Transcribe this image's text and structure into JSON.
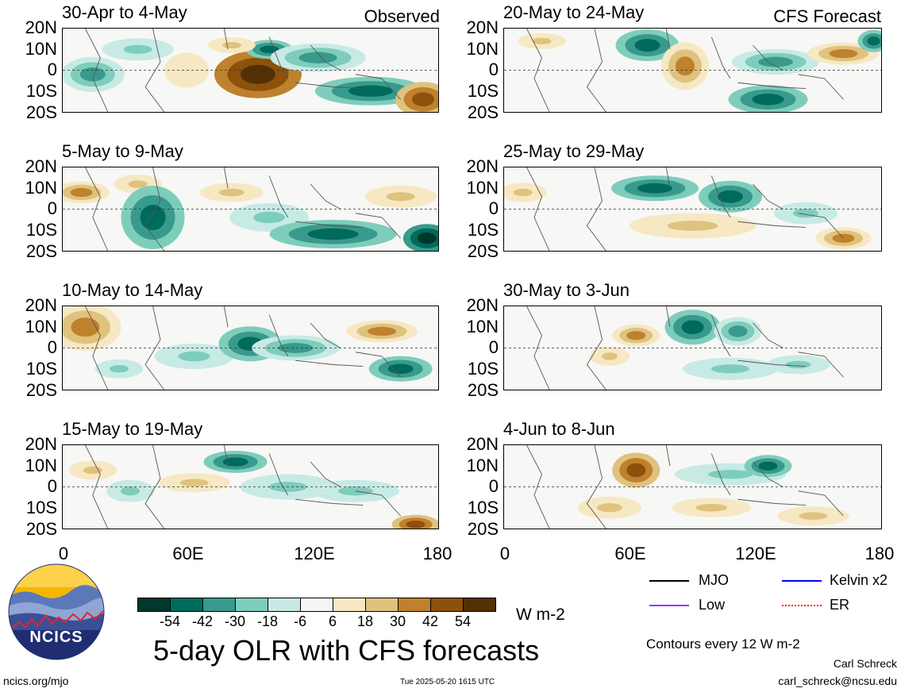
{
  "header": {
    "observed_label": "Observed",
    "forecast_label": "CFS Forecast"
  },
  "lat_labels": [
    "20N",
    "10N",
    "0",
    "10S",
    "20S"
  ],
  "lon_labels": [
    "0",
    "60E",
    "120E",
    "180"
  ],
  "panels_left": [
    {
      "title": "30-Apr to 4-May"
    },
    {
      "title": "5-May to 9-May"
    },
    {
      "title": "10-May to 14-May"
    },
    {
      "title": "15-May to 19-May"
    }
  ],
  "panels_right": [
    {
      "title": "20-May to 24-May"
    },
    {
      "title": "25-May to 29-May"
    },
    {
      "title": "30-May to 3-Jun"
    },
    {
      "title": "4-Jun to 8-Jun"
    }
  ],
  "colorbar": {
    "colors": [
      "#00382c",
      "#006a5c",
      "#389a8c",
      "#7ecdbb",
      "#c7eae5",
      "#f5f5f5",
      "#f6e8c3",
      "#dfc27d",
      "#bf812d",
      "#8c510a",
      "#543005"
    ],
    "labels": [
      "-54",
      "-42",
      "-30",
      "-18",
      "-6",
      "6",
      "18",
      "30",
      "42",
      "54"
    ],
    "unit": "W m-2"
  },
  "legend": {
    "mjo": "MJO",
    "kelvin": "Kelvin x2",
    "low": "Low",
    "er": "ER",
    "colors": {
      "mjo": "#000000",
      "kelvin": "#0000ff",
      "low": "#9933ff",
      "er": "#ff0000"
    },
    "contours_note": "Contours every 12 W m-2"
  },
  "logo": {
    "text": "NCICS"
  },
  "main_title": "5-day OLR with CFS forecasts",
  "footer": {
    "url": "ncics.org/mjo",
    "timestamp": "Tue 2025-05-20 1615 UTC",
    "author": "Carl Schreck",
    "email": "carl_schreck@ncsu.edu"
  },
  "chart_data": {
    "type": "heatmap",
    "variable": "5-day OLR anomaly",
    "units": "W m-2",
    "lon_range": [
      0,
      180
    ],
    "lat_range": [
      -20,
      20
    ],
    "contour_levels": [
      -54,
      -42,
      -30,
      -18,
      -6,
      6,
      18,
      30,
      42,
      54
    ],
    "panels": [
      {
        "title": "30-Apr to 4-May",
        "source": "Observed"
      },
      {
        "title": "5-May to 9-May",
        "source": "Observed"
      },
      {
        "title": "10-May to 14-May",
        "source": "Observed"
      },
      {
        "title": "15-May to 19-May",
        "source": "Observed"
      },
      {
        "title": "20-May to 24-May",
        "source": "CFS Forecast"
      },
      {
        "title": "25-May to 29-May",
        "source": "CFS Forecast"
      },
      {
        "title": "30-May to 3-Jun",
        "source": "CFS Forecast"
      },
      {
        "title": "4-Jun to 8-Jun",
        "source": "CFS Forecast"
      }
    ]
  }
}
